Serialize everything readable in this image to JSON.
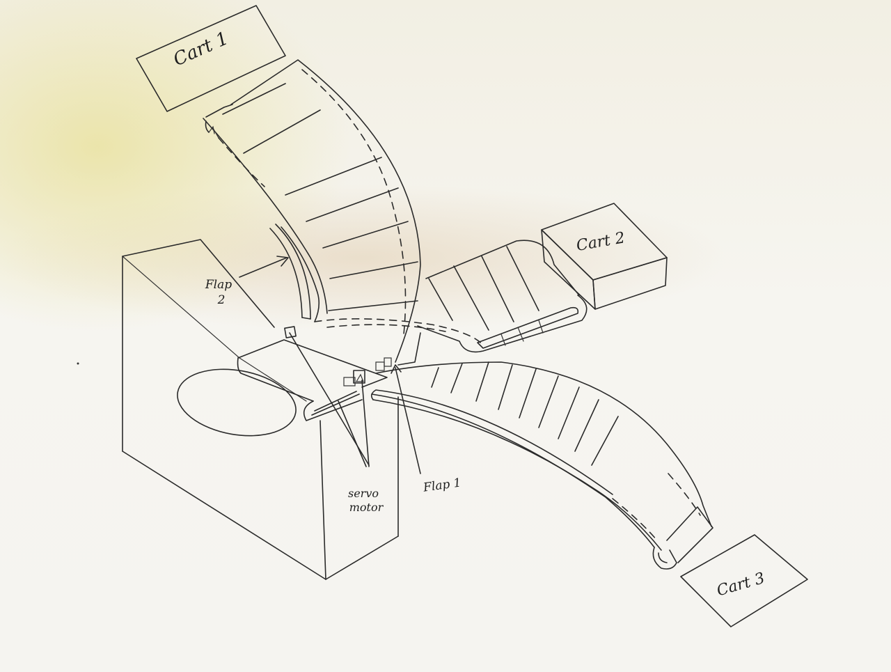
{
  "labels": {
    "cart1": "Cart 1",
    "cart2": "Cart 2",
    "cart3": "Cart 3",
    "flap2_line1": "Flap",
    "flap2_line2": "2",
    "flap1": "Flap 1",
    "servo_line1": "servo",
    "servo_line2": "motor"
  }
}
